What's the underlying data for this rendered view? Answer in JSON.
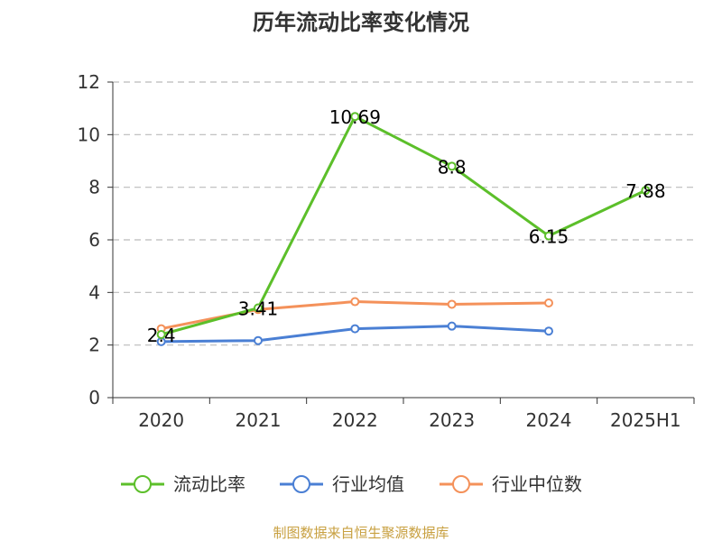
{
  "chart_data": {
    "type": "line",
    "title": "历年流动比率变化情况",
    "categories": [
      "2020",
      "2021",
      "2022",
      "2023",
      "2024",
      "2025H1"
    ],
    "ylim": [
      0,
      12
    ],
    "yticks": [
      0,
      2,
      4,
      6,
      8,
      10,
      12
    ],
    "grid": true,
    "legend": "bottom",
    "series": [
      {
        "name": "流动比率",
        "color": "#5cbf2a",
        "values": [
          2.4,
          3.41,
          10.69,
          8.8,
          6.15,
          7.88
        ],
        "labels": [
          "2.4",
          "3.41",
          "10.69",
          "8.8",
          "6.15",
          "7.88"
        ]
      },
      {
        "name": "行业均值",
        "color": "#4a7fd4",
        "values": [
          2.13,
          2.17,
          2.62,
          2.72,
          2.53,
          null
        ]
      },
      {
        "name": "行业中位数",
        "color": "#f4915a",
        "values": [
          2.62,
          3.35,
          3.65,
          3.55,
          3.6,
          null
        ]
      }
    ]
  },
  "source": "制图数据来自恒生聚源数据库"
}
